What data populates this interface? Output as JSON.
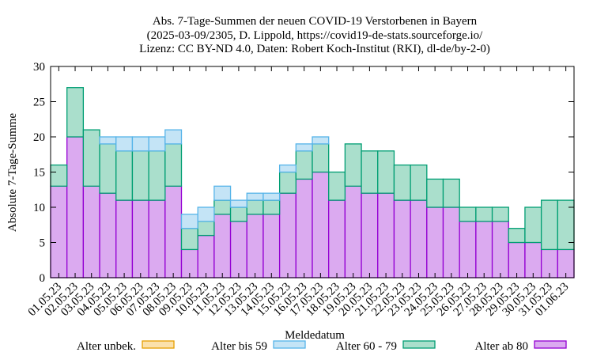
{
  "chart_data": {
    "type": "bar",
    "stacked": true,
    "title": "Abs. 7-Tage-Summen der neuen COVID-19 Verstorbenen in Bayern",
    "subtitle": "(2025-03-09/2305, D. Lippold, https://covid19-de-stats.sourceforge.io/",
    "license": "Lizenz: CC BY-ND 4.0, Daten: Robert Koch-Institut (RKI), dl-de/by-2-0)",
    "xlabel": "Meldedatum",
    "ylabel": "Absolute 7-Tage-Summe",
    "ylim": [
      0,
      30
    ],
    "yticks": [
      "0",
      "5",
      "10",
      "15",
      "20",
      "25",
      "30"
    ],
    "legend_position": "bottom",
    "categories": [
      "01.05.23",
      "02.05.23",
      "03.05.23",
      "04.05.23",
      "05.05.23",
      "06.05.23",
      "07.05.23",
      "08.05.23",
      "09.05.23",
      "10.05.23",
      "11.05.23",
      "12.05.23",
      "13.05.23",
      "14.05.23",
      "15.05.23",
      "16.05.23",
      "17.05.23",
      "18.05.23",
      "19.05.23",
      "20.05.23",
      "21.05.23",
      "22.05.23",
      "23.05.23",
      "24.05.23",
      "25.05.23",
      "26.05.23",
      "27.05.23",
      "28.05.23",
      "29.05.23",
      "30.05.23",
      "31.05.23",
      "01.06.23"
    ],
    "series": [
      {
        "name": "Alter ab 80",
        "fill": "#dbaaf0",
        "stroke": "#9400d3",
        "values": [
          13,
          20,
          13,
          12,
          11,
          11,
          11,
          13,
          4,
          6,
          9,
          8,
          9,
          9,
          12,
          14,
          15,
          11,
          13,
          12,
          12,
          11,
          11,
          10,
          10,
          8,
          8,
          8,
          5,
          5,
          4,
          4
        ]
      },
      {
        "name": "Alter 60 - 79",
        "fill": "#aadfcc",
        "stroke": "#009e73",
        "values": [
          3,
          7,
          8,
          7,
          7,
          7,
          7,
          6,
          3,
          2,
          2,
          2,
          2,
          2,
          3,
          4,
          4,
          4,
          6,
          6,
          6,
          5,
          5,
          4,
          4,
          2,
          2,
          2,
          2,
          5,
          7,
          7
        ]
      },
      {
        "name": "Alter bis 59",
        "fill": "#c4e4f6",
        "stroke": "#56b4e9",
        "values": [
          0,
          0,
          0,
          1,
          2,
          2,
          2,
          2,
          2,
          2,
          2,
          1,
          1,
          1,
          1,
          1,
          1,
          0,
          0,
          0,
          0,
          0,
          0,
          0,
          0,
          0,
          0,
          0,
          0,
          0,
          0,
          0
        ]
      },
      {
        "name": "Alter unbek.",
        "fill": "#fbe1ab",
        "stroke": "#e69f00",
        "values": [
          0,
          0,
          0,
          0,
          0,
          0,
          0,
          0,
          0,
          0,
          0,
          0,
          0,
          0,
          0,
          0,
          0,
          0,
          0,
          0,
          0,
          0,
          0,
          0,
          0,
          0,
          0,
          0,
          0,
          0,
          0,
          0
        ]
      }
    ],
    "legend": [
      "Alter unbek.",
      "Alter bis 59",
      "Alter 60 - 79",
      "Alter ab 80"
    ]
  }
}
